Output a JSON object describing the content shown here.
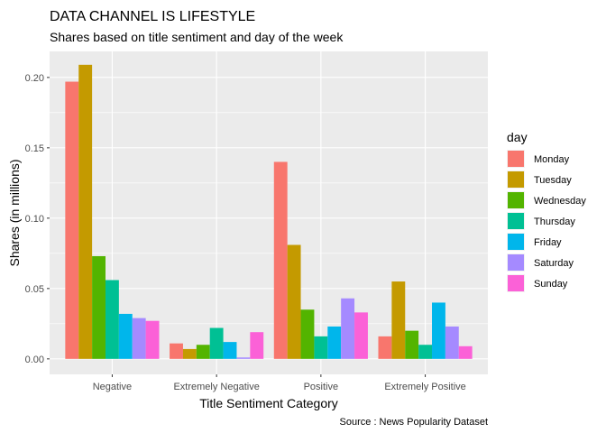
{
  "chart_data": {
    "type": "bar",
    "title": "DATA CHANNEL IS LIFESTYLE",
    "subtitle": "Shares based on title sentiment and day of the week",
    "xlabel": "Title Sentiment Category",
    "ylabel": "Shares (in millions)",
    "caption": "Source : News Popularity Dataset",
    "categories": [
      "Negative",
      "Extremely Negative",
      "Positive",
      "Extremely Positive"
    ],
    "ylim": [
      -0.011,
      0.2185
    ],
    "yticks": [
      0.0,
      0.05,
      0.1,
      0.15,
      0.2
    ],
    "ytick_labels": [
      "0.00",
      "0.05",
      "0.10",
      "0.15",
      "0.20"
    ],
    "grid": true,
    "legend": {
      "title": "day",
      "position": "right"
    },
    "series": [
      {
        "name": "Monday",
        "color": "#F8766D",
        "values": [
          0.197,
          0.011,
          0.14,
          0.016
        ]
      },
      {
        "name": "Tuesday",
        "color": "#C49A00",
        "values": [
          0.209,
          0.007,
          0.081,
          0.055
        ]
      },
      {
        "name": "Wednesday",
        "color": "#53B400",
        "values": [
          0.073,
          0.01,
          0.035,
          0.02
        ]
      },
      {
        "name": "Thursday",
        "color": "#00C094",
        "values": [
          0.056,
          0.022,
          0.016,
          0.01
        ]
      },
      {
        "name": "Friday",
        "color": "#00B6EB",
        "values": [
          0.032,
          0.012,
          0.023,
          0.04
        ]
      },
      {
        "name": "Saturday",
        "color": "#A58AFF",
        "values": [
          0.029,
          0.001,
          0.043,
          0.023
        ]
      },
      {
        "name": "Sunday",
        "color": "#FB61D7",
        "values": [
          0.027,
          0.019,
          0.033,
          0.009
        ]
      }
    ]
  }
}
